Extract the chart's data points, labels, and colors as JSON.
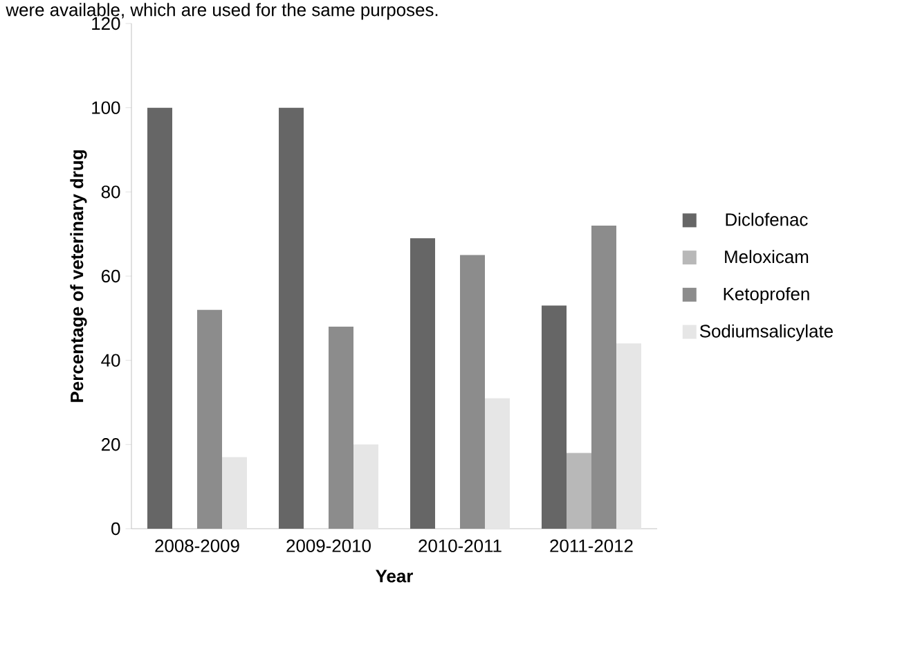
{
  "chart_data": {
    "type": "bar",
    "xlabel": "Year",
    "ylabel": "Percentage of veterinary drug",
    "annotations": [
      "were available, which are used for the same purposes."
    ],
    "categories": [
      "2008-2009",
      "2009-2010",
      "2010-2011",
      "2011-2012"
    ],
    "series": [
      {
        "name": "Diclofenac",
        "color": "#666666",
        "values": [
          100,
          100,
          69,
          53
        ]
      },
      {
        "name": "Meloxicam",
        "color": "#b8b8b8",
        "values": [
          null,
          null,
          null,
          18
        ]
      },
      {
        "name": "Ketoprofen",
        "color": "#8c8c8c",
        "values": [
          52,
          48,
          65,
          72
        ]
      },
      {
        "name": "Sodiumsalicylate",
        "color": "#e6e6e6",
        "values": [
          17,
          20,
          31,
          44
        ]
      }
    ],
    "ylim": [
      0,
      120
    ],
    "yticks": [
      0,
      20,
      40,
      60,
      80,
      100,
      120
    ],
    "grid": false,
    "legend": "right"
  }
}
